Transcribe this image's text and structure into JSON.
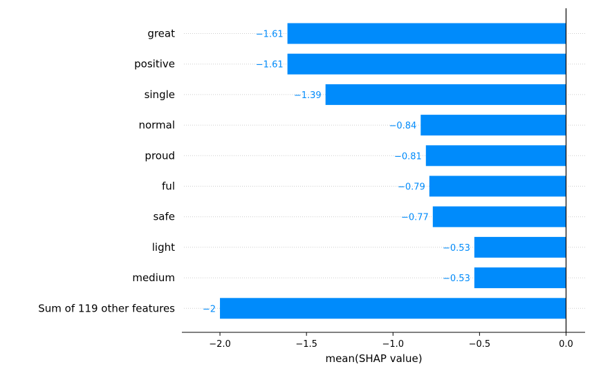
{
  "chart_data": {
    "type": "bar",
    "orientation": "horizontal",
    "categories": [
      "great",
      "positive",
      "single",
      "normal",
      "proud",
      "ful",
      "safe",
      "light",
      "medium",
      "Sum of 119 other features"
    ],
    "values": [
      -1.61,
      -1.61,
      -1.39,
      -0.84,
      -0.81,
      -0.79,
      -0.77,
      -0.53,
      -0.53,
      -2.0
    ],
    "value_labels": [
      "−1.61",
      "−1.61",
      "−1.39",
      "−0.84",
      "−0.81",
      "−0.79",
      "−0.77",
      "−0.53",
      "−0.53",
      "−2"
    ],
    "xlabel": "mean(SHAP value)",
    "ylabel": "",
    "xlim": [
      -2.22,
      0.11
    ],
    "xticks": [
      -2.0,
      -1.5,
      -1.0,
      -0.5,
      0.0
    ],
    "xtick_labels": [
      "−2.0",
      "−1.5",
      "−1.0",
      "−0.5",
      "0.0"
    ],
    "grid": "horizontal dotted",
    "colors": {
      "bar": "#008bfb",
      "value_text": "#008bfb",
      "zero_line": "#000000",
      "grid": "#cccccc",
      "axis": "#000000"
    }
  }
}
